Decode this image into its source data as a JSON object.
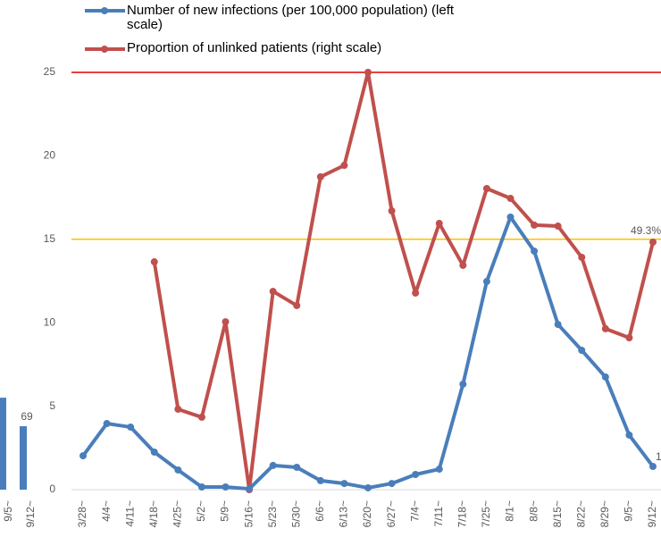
{
  "chart_data": [
    {
      "type": "line",
      "categories": [
        "3/28~",
        "4/4~",
        "4/11~",
        "4/18~",
        "4/25~",
        "5/2~",
        "5/9~",
        "5/16~",
        "5/23~",
        "5/30~",
        "6/6~",
        "6/13~",
        "6/20~",
        "6/27~",
        "7/4~",
        "7/11~",
        "7/18~",
        "7/25~",
        "8/1~",
        "8/8~",
        "8/15~",
        "8/22~",
        "8/29~",
        "9/5~",
        "9/12~"
      ],
      "series": [
        {
          "name": "Number of new infections (per 100,000 population) (left scale)",
          "color": "#4a7ebb",
          "values": [
            2.03,
            3.96,
            3.75,
            2.25,
            1.18,
            0.16,
            0.16,
            0.05,
            1.45,
            1.34,
            0.54,
            0.37,
            0.11,
            0.37,
            0.91,
            1.23,
            6.32,
            12.47,
            16.33,
            14.29,
            9.9,
            8.35,
            6.75,
            3.27,
            1.39
          ]
        },
        {
          "name": "Proportion of unlinked patients (right scale)",
          "color": "#c0504d",
          "values": [
            null,
            null,
            null,
            13.65,
            4.82,
            4.34,
            10.06,
            0,
            11.88,
            11.03,
            18.74,
            19.43,
            25,
            16.7,
            11.78,
            15.95,
            13.44,
            18.04,
            17.45,
            15.85,
            15.79,
            13.92,
            9.64,
            9.1,
            14.83
          ]
        }
      ],
      "ylim": [
        0,
        25
      ],
      "yticks": [
        0,
        5,
        10,
        15,
        20,
        25
      ],
      "reference_lines": [
        {
          "value": 25,
          "color": "#e00000"
        },
        {
          "value": 15,
          "color": "#ffc000"
        }
      ],
      "annotations": [
        "49.3%",
        "1"
      ]
    },
    {
      "type": "bar",
      "categories": [
        "9/5~",
        "9/12~"
      ],
      "values": [
        100,
        69
      ],
      "color": "#4a7ebb",
      "value_labels": [
        null,
        "69"
      ]
    }
  ]
}
